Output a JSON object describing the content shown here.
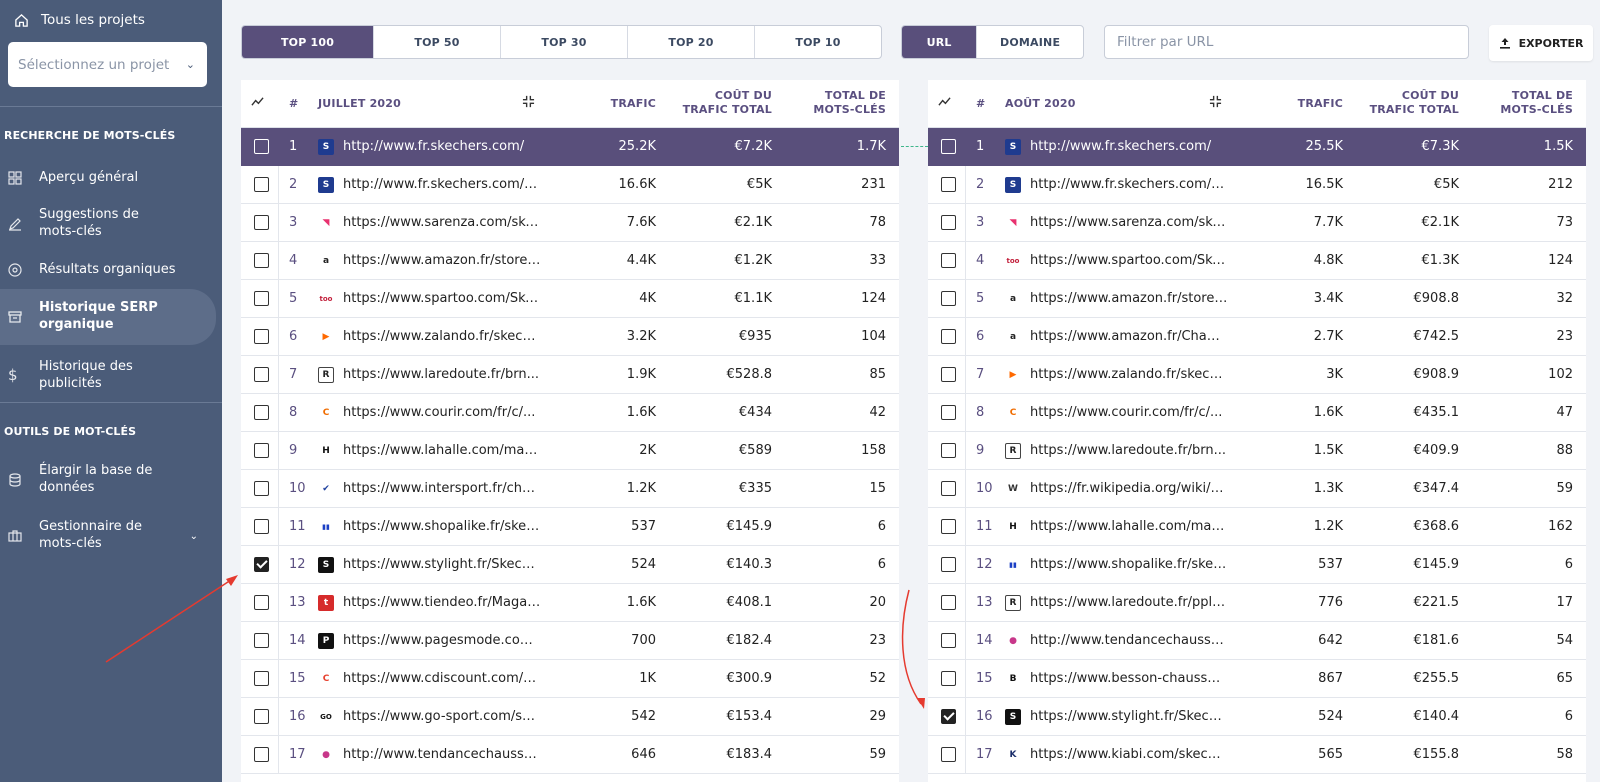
{
  "sidebar": {
    "all_projects": "Tous les projets",
    "project_select_placeholder": "Sélectionnez un projet",
    "section_keywords": "RECHERCHE DE MOTS-CLÉS",
    "items": [
      {
        "label": "Aperçu général",
        "icon": "grid-icon"
      },
      {
        "label": "Suggestions de mots-clés",
        "icon": "pencil-icon"
      },
      {
        "label": "Résultats organiques",
        "icon": "target-icon"
      },
      {
        "label": "Historique SERP organique",
        "icon": "archive-icon",
        "active": true
      },
      {
        "label": "Historique des publicités",
        "icon": "dollar-icon"
      }
    ],
    "section_tools": "OUTILS DE MOT-CLÉS",
    "tools": [
      {
        "label": "Élargir la base de données",
        "icon": "database-icon"
      },
      {
        "label": "Gestionnaire de mots-clés",
        "icon": "briefcase-icon"
      }
    ]
  },
  "toolbar": {
    "top_tabs": [
      "TOP 100",
      "TOP 50",
      "TOP 30",
      "TOP 20",
      "TOP 10"
    ],
    "top_selected": "TOP 100",
    "mode_tabs": [
      "URL",
      "DOMAINE"
    ],
    "mode_selected": "URL",
    "filter_placeholder": "Filtrer par URL",
    "export_label": "EXPORTER"
  },
  "colors": {
    "sidebar_bg": "#4b5c79",
    "accent": "#594f7b",
    "connector": "#3fb68b",
    "arrow": "#e53a2f"
  },
  "tables": [
    {
      "period": "JUILLET 2020",
      "headers": {
        "num": "#",
        "traffic": "TRAFIC",
        "cost": "COÛT DU TRAFIC TOTAL",
        "keywords": "TOTAL DE MOTS-CLÉS"
      },
      "rows": [
        {
          "rank": "1",
          "url": "http://www.fr.skechers.com/",
          "traffic": "25.2K",
          "cost": "€7.2K",
          "keywords": "1.7K",
          "favicon": "skechers",
          "checked": false
        },
        {
          "rank": "2",
          "url": "http://www.fr.skechers.com/fr...",
          "traffic": "16.6K",
          "cost": "€5K",
          "keywords": "231",
          "favicon": "skechers",
          "checked": false
        },
        {
          "rank": "3",
          "url": "https://www.sarenza.com/ske...",
          "traffic": "7.6K",
          "cost": "€2.1K",
          "keywords": "78",
          "favicon": "sarenza",
          "checked": false
        },
        {
          "rank": "4",
          "url": "https://www.amazon.fr/stores...",
          "traffic": "4.4K",
          "cost": "€1.2K",
          "keywords": "33",
          "favicon": "amazon",
          "checked": false
        },
        {
          "rank": "5",
          "url": "https://www.spartoo.com/Ske...",
          "traffic": "4K",
          "cost": "€1.1K",
          "keywords": "124",
          "favicon": "spartoo",
          "checked": false
        },
        {
          "rank": "6",
          "url": "https://www.zalando.fr/skech...",
          "traffic": "3.2K",
          "cost": "€935",
          "keywords": "104",
          "favicon": "zalando",
          "checked": false
        },
        {
          "rank": "7",
          "url": "https://www.laredoute.fr/brn...",
          "traffic": "1.9K",
          "cost": "€528.8",
          "keywords": "85",
          "favicon": "laredoute",
          "checked": false
        },
        {
          "rank": "8",
          "url": "https://www.courir.com/fr/c/...",
          "traffic": "1.6K",
          "cost": "€434",
          "keywords": "42",
          "favicon": "courir",
          "checked": false
        },
        {
          "rank": "9",
          "url": "https://www.lahalle.com/marq...",
          "traffic": "2K",
          "cost": "€589",
          "keywords": "158",
          "favicon": "lahalle",
          "checked": false
        },
        {
          "rank": "10",
          "url": "https://www.intersport.fr/cha...",
          "traffic": "1.2K",
          "cost": "€335",
          "keywords": "15",
          "favicon": "intersport",
          "checked": false
        },
        {
          "rank": "11",
          "url": "https://www.shopalike.fr/skec...",
          "traffic": "537",
          "cost": "€145.9",
          "keywords": "6",
          "favicon": "shopalike",
          "checked": false
        },
        {
          "rank": "12",
          "url": "https://www.stylight.fr/Skech...",
          "traffic": "524",
          "cost": "€140.3",
          "keywords": "6",
          "favicon": "stylight",
          "checked": true
        },
        {
          "rank": "13",
          "url": "https://www.tiendeo.fr/Magas...",
          "traffic": "1.6K",
          "cost": "€408.1",
          "keywords": "20",
          "favicon": "tiendeo",
          "checked": false
        },
        {
          "rank": "14",
          "url": "https://www.pagesmode.com/...",
          "traffic": "700",
          "cost": "€182.4",
          "keywords": "23",
          "favicon": "pagesmode",
          "checked": false
        },
        {
          "rank": "15",
          "url": "https://www.cdiscount.com/c...",
          "traffic": "1K",
          "cost": "€300.9",
          "keywords": "52",
          "favicon": "cdiscount",
          "checked": false
        },
        {
          "rank": "16",
          "url": "https://www.go-sport.com/sp...",
          "traffic": "542",
          "cost": "€153.4",
          "keywords": "29",
          "favicon": "gosport",
          "checked": false
        },
        {
          "rank": "17",
          "url": "http://www.tendancechaussur...",
          "traffic": "646",
          "cost": "€183.4",
          "keywords": "59",
          "favicon": "tendance",
          "checked": false
        }
      ]
    },
    {
      "period": "AOÛT 2020",
      "headers": {
        "num": "#",
        "traffic": "TRAFIC",
        "cost": "COÛT DU TRAFIC TOTAL",
        "keywords": "TOTAL DE MOTS-CLÉS"
      },
      "rows": [
        {
          "rank": "1",
          "url": "http://www.fr.skechers.com/",
          "traffic": "25.5K",
          "cost": "€7.3K",
          "keywords": "1.5K",
          "favicon": "skechers",
          "checked": false
        },
        {
          "rank": "2",
          "url": "http://www.fr.skechers.com/fr...",
          "traffic": "16.5K",
          "cost": "€5K",
          "keywords": "212",
          "favicon": "skechers",
          "checked": false
        },
        {
          "rank": "3",
          "url": "https://www.sarenza.com/ske...",
          "traffic": "7.7K",
          "cost": "€2.1K",
          "keywords": "73",
          "favicon": "sarenza",
          "checked": false
        },
        {
          "rank": "4",
          "url": "https://www.spartoo.com/Ske...",
          "traffic": "4.8K",
          "cost": "€1.3K",
          "keywords": "124",
          "favicon": "spartoo",
          "checked": false
        },
        {
          "rank": "5",
          "url": "https://www.amazon.fr/stores...",
          "traffic": "3.4K",
          "cost": "€908.8",
          "keywords": "32",
          "favicon": "amazon",
          "checked": false
        },
        {
          "rank": "6",
          "url": "https://www.amazon.fr/Chaus...",
          "traffic": "2.7K",
          "cost": "€742.5",
          "keywords": "23",
          "favicon": "amazon",
          "checked": false
        },
        {
          "rank": "7",
          "url": "https://www.zalando.fr/skech...",
          "traffic": "3K",
          "cost": "€908.9",
          "keywords": "102",
          "favicon": "zalando",
          "checked": false
        },
        {
          "rank": "8",
          "url": "https://www.courir.com/fr/c/...",
          "traffic": "1.6K",
          "cost": "€435.1",
          "keywords": "47",
          "favicon": "courir",
          "checked": false
        },
        {
          "rank": "9",
          "url": "https://www.laredoute.fr/brn...",
          "traffic": "1.5K",
          "cost": "€409.9",
          "keywords": "88",
          "favicon": "laredoute",
          "checked": false
        },
        {
          "rank": "10",
          "url": "https://fr.wikipedia.org/wiki/S...",
          "traffic": "1.3K",
          "cost": "€347.4",
          "keywords": "59",
          "favicon": "wikipedia",
          "checked": false
        },
        {
          "rank": "11",
          "url": "https://www.lahalle.com/marq...",
          "traffic": "1.2K",
          "cost": "€368.6",
          "keywords": "162",
          "favicon": "lahalle",
          "checked": false
        },
        {
          "rank": "12",
          "url": "https://www.shopalike.fr/skec...",
          "traffic": "537",
          "cost": "€145.9",
          "keywords": "6",
          "favicon": "shopalike",
          "checked": false
        },
        {
          "rank": "13",
          "url": "https://www.laredoute.fr/pplp...",
          "traffic": "776",
          "cost": "€221.5",
          "keywords": "17",
          "favicon": "laredoute",
          "checked": false
        },
        {
          "rank": "14",
          "url": "http://www.tendancechaussur...",
          "traffic": "642",
          "cost": "€181.6",
          "keywords": "54",
          "favicon": "tendance",
          "checked": false
        },
        {
          "rank": "15",
          "url": "https://www.besson-chaussur...",
          "traffic": "867",
          "cost": "€255.5",
          "keywords": "65",
          "favicon": "besson",
          "checked": false
        },
        {
          "rank": "16",
          "url": "https://www.stylight.fr/Skech...",
          "traffic": "524",
          "cost": "€140.4",
          "keywords": "6",
          "favicon": "stylight",
          "checked": true
        },
        {
          "rank": "17",
          "url": "https://www.kiabi.com/skeche...",
          "traffic": "565",
          "cost": "€155.8",
          "keywords": "58",
          "favicon": "kiabi",
          "checked": false
        }
      ]
    }
  ]
}
